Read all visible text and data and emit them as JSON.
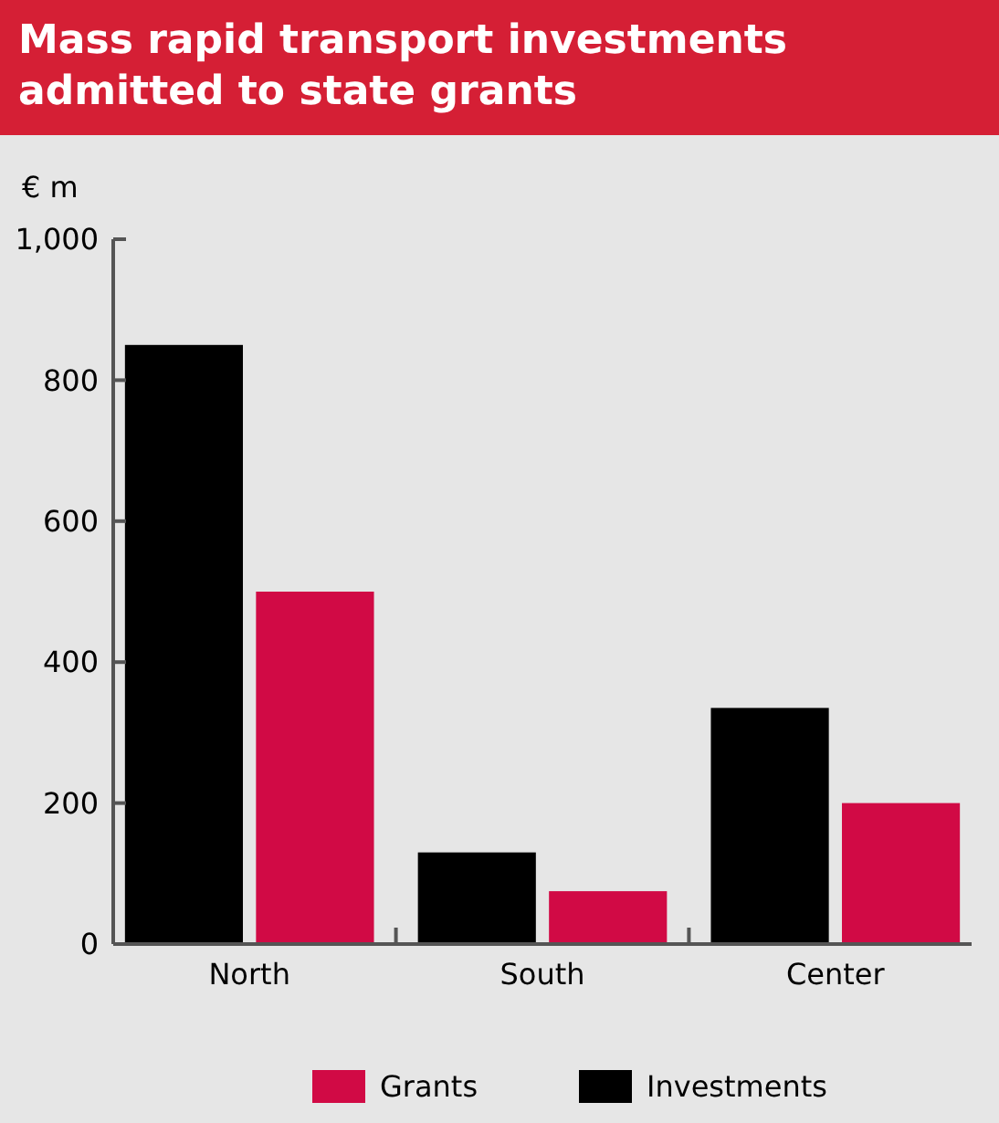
{
  "chart_data": {
    "type": "bar",
    "title": "Mass rapid transport investments admitted to state grants",
    "ylabel": "€ m",
    "categories": [
      "North",
      "South",
      "Center"
    ],
    "series": [
      {
        "name": "Investments",
        "color": "#000000",
        "values": [
          850,
          130,
          335
        ]
      },
      {
        "name": "Grants",
        "color": "#d10a45",
        "values": [
          500,
          75,
          200
        ]
      }
    ],
    "ylim": [
      0,
      1000
    ],
    "yticks": [
      0,
      200,
      400,
      600,
      800,
      {
        "value": 1000,
        "label": "1,000"
      }
    ],
    "grid": false,
    "legend": "bottom"
  }
}
